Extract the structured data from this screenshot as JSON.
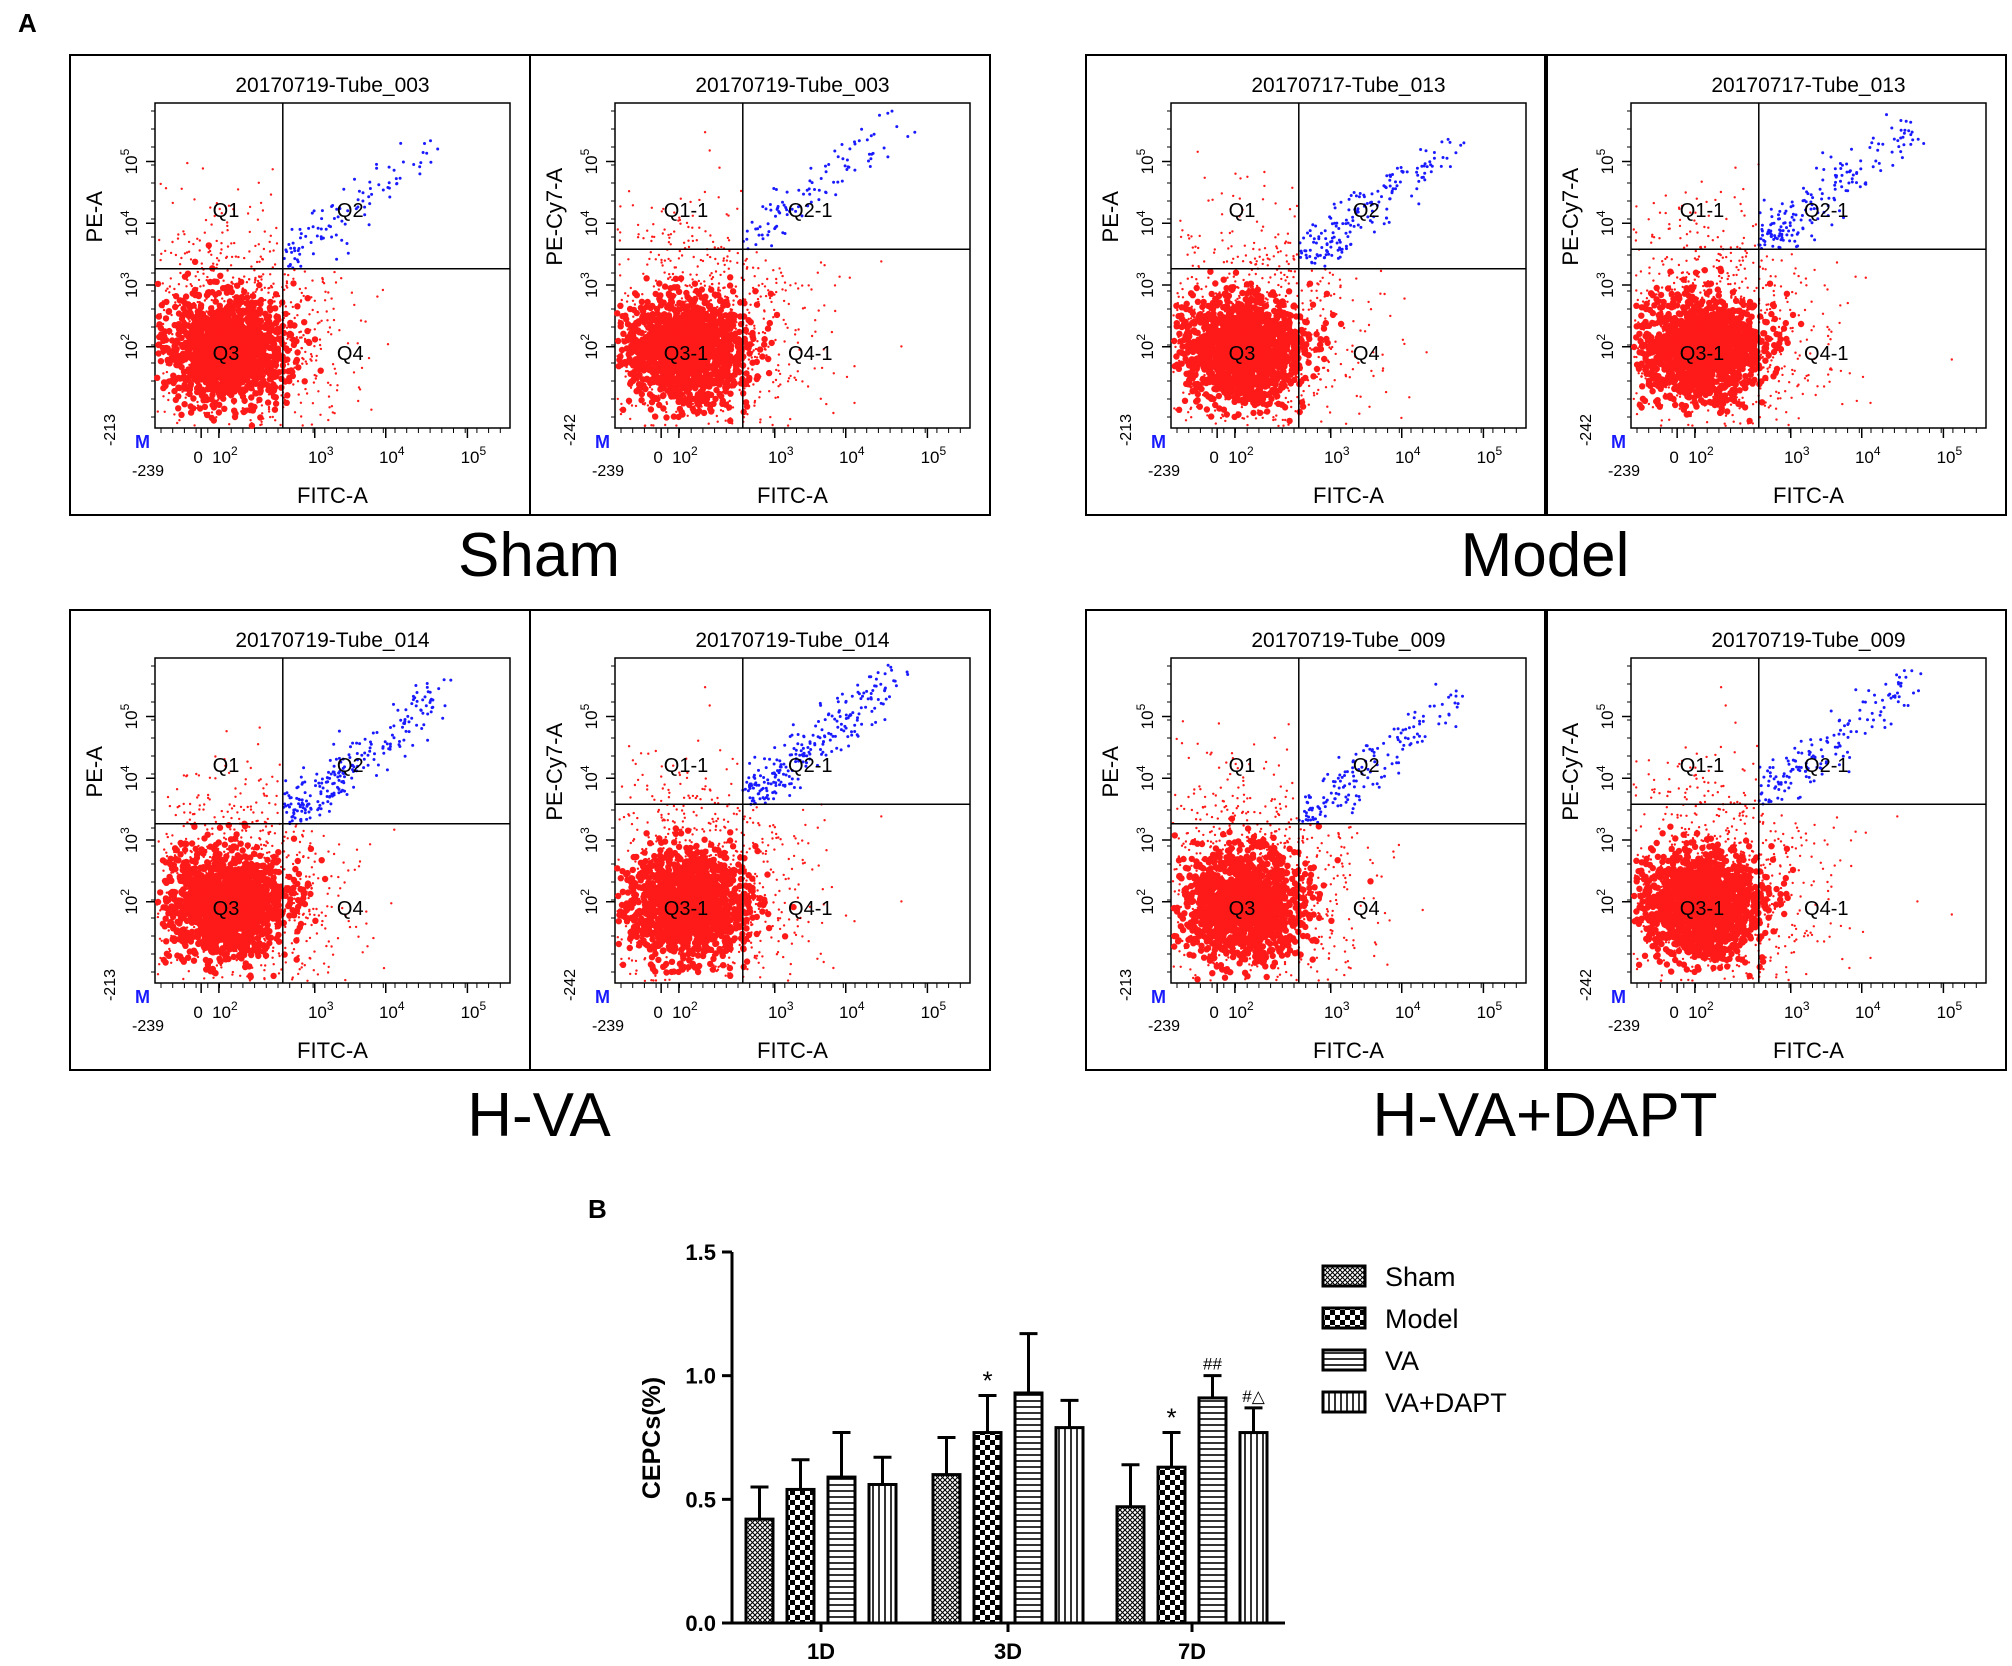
{
  "panel_a_label": "A",
  "panel_b_label": "B",
  "chart_data": [
    {
      "type": "scatter",
      "subtype": "flow-cytometry-quadrant-plots",
      "groups": [
        {
          "label": "Sham",
          "plots": [
            {
              "title": "20170719-Tube_003",
              "ylabel": "PE-A",
              "xlabel": "FITC-A",
              "ymin_label": "-213",
              "xmin_label": "-239",
              "quadrants": [
                "Q1",
                "Q2",
                "Q3",
                "Q4"
              ],
              "gate_marker": "M",
              "blue_density": 0.05
            },
            {
              "title": "20170719-Tube_003",
              "ylabel": "PE-Cy7-A",
              "xlabel": "FITC-A",
              "ymin_label": "-242",
              "xmin_label": "-239",
              "quadrants": [
                "Q1-1",
                "Q2-1",
                "Q3-1",
                "Q4-1"
              ],
              "gate_marker": "M",
              "blue_density": 0.05
            }
          ]
        },
        {
          "label": "Model",
          "plots": [
            {
              "title": "20170717-Tube_013",
              "ylabel": "PE-A",
              "xlabel": "FITC-A",
              "ymin_label": "-213",
              "xmin_label": "-239",
              "quadrants": [
                "Q1",
                "Q2",
                "Q3",
                "Q4"
              ],
              "gate_marker": "M",
              "blue_density": 0.09
            },
            {
              "title": "20170717-Tube_013",
              "ylabel": "PE-Cy7-A",
              "xlabel": "FITC-A",
              "ymin_label": "-242",
              "xmin_label": "-239",
              "quadrants": [
                "Q1-1",
                "Q2-1",
                "Q3-1",
                "Q4-1"
              ],
              "gate_marker": "M",
              "blue_density": 0.09
            }
          ]
        },
        {
          "label": "H-VA",
          "plots": [
            {
              "title": "20170719-Tube_014",
              "ylabel": "PE-A",
              "xlabel": "FITC-A",
              "ymin_label": "-213",
              "xmin_label": "-239",
              "quadrants": [
                "Q1",
                "Q2",
                "Q3",
                "Q4"
              ],
              "gate_marker": "M",
              "blue_density": 0.12
            },
            {
              "title": "20170719-Tube_014",
              "ylabel": "PE-Cy7-A",
              "xlabel": "FITC-A",
              "ymin_label": "-242",
              "xmin_label": "-239",
              "quadrants": [
                "Q1-1",
                "Q2-1",
                "Q3-1",
                "Q4-1"
              ],
              "gate_marker": "M",
              "blue_density": 0.12
            }
          ]
        },
        {
          "label": "H-VA+DAPT",
          "plots": [
            {
              "title": "20170719-Tube_009",
              "ylabel": "PE-A",
              "xlabel": "FITC-A",
              "ymin_label": "-213",
              "xmin_label": "-239",
              "quadrants": [
                "Q1",
                "Q2",
                "Q3",
                "Q4"
              ],
              "gate_marker": "M",
              "blue_density": 0.08
            },
            {
              "title": "20170719-Tube_009",
              "ylabel": "PE-Cy7-A",
              "xlabel": "FITC-A",
              "ymin_label": "-242",
              "xmin_label": "-239",
              "quadrants": [
                "Q1-1",
                "Q2-1",
                "Q3-1",
                "Q4-1"
              ],
              "gate_marker": "M",
              "blue_density": 0.08
            }
          ]
        }
      ],
      "y_tick_labels": [
        "10^2",
        "10^3",
        "10^4",
        "10^5"
      ],
      "x_tick_labels": [
        "0",
        "10^2",
        "10^3",
        "10^4",
        "10^5"
      ],
      "colors": {
        "negative": "#ff1a1a",
        "double_positive": "#1a1aff"
      }
    },
    {
      "type": "bar",
      "categories": [
        "1D",
        "3D",
        "7D"
      ],
      "ylabel": "CEPCs(%)",
      "xlabel": "",
      "ylim": [
        0.0,
        1.5
      ],
      "yticks": [
        "0.0",
        "0.5",
        "1.0",
        "1.5"
      ],
      "yticks_values": [
        0.0,
        0.5,
        1.0,
        1.5
      ],
      "legend_position": "top-right",
      "series": [
        {
          "name": "Sham",
          "pattern": "crosshatch",
          "values": [
            0.42,
            0.6,
            0.47
          ],
          "errors": [
            0.13,
            0.15,
            0.17
          ],
          "annotations": [
            "",
            "",
            ""
          ]
        },
        {
          "name": "Model",
          "pattern": "checker",
          "values": [
            0.54,
            0.77,
            0.63
          ],
          "errors": [
            0.12,
            0.15,
            0.14
          ],
          "annotations": [
            "",
            "*",
            "*"
          ]
        },
        {
          "name": "VA",
          "pattern": "horizontal",
          "values": [
            0.59,
            0.93,
            0.91
          ],
          "errors": [
            0.18,
            0.24,
            0.09
          ],
          "annotations": [
            "",
            "",
            "##"
          ]
        },
        {
          "name": "VA+DAPT",
          "pattern": "vertical",
          "values": [
            0.56,
            0.79,
            0.77
          ],
          "errors": [
            0.11,
            0.11,
            0.1
          ],
          "annotations": [
            "",
            "",
            "#△"
          ]
        }
      ]
    }
  ]
}
